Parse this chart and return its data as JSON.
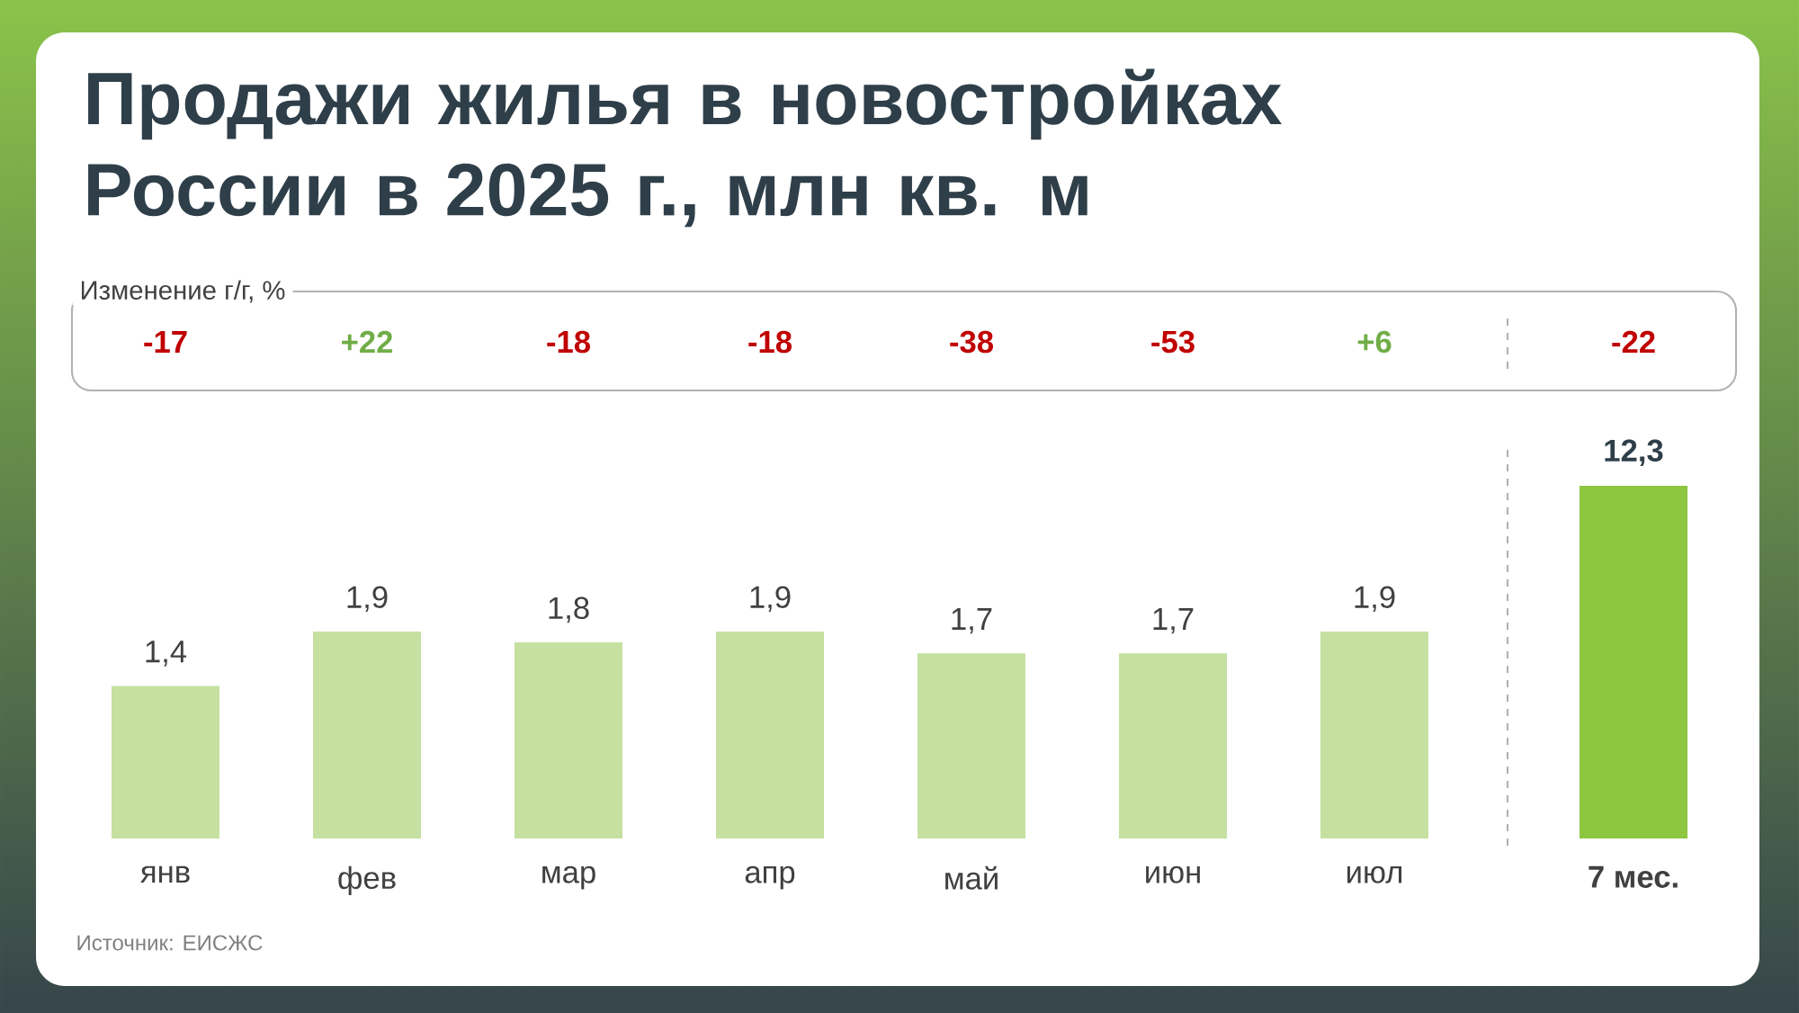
{
  "chart_data": [
    {
      "type": "bar",
      "title": "Продажи жилья в новостройках России в 2025 г., млн кв. м",
      "categories": [
        "янв",
        "фев",
        "мар",
        "апр",
        "май",
        "июн",
        "июл"
      ],
      "values": [
        1.4,
        1.9,
        1.8,
        1.9,
        1.7,
        1.7,
        1.9
      ],
      "value_labels": [
        "1,4",
        "1,9",
        "1,8",
        "1,9",
        "1,7",
        "1,7",
        "1,9"
      ],
      "color": "#c5e0a0",
      "annotations": [
        "Изменение г/г, %",
        "-17",
        "+22",
        "-18",
        "-18",
        "-38",
        "-53",
        "+6",
        "Источник: ЕИСЖС"
      ]
    },
    {
      "type": "bar",
      "categories": [
        "7 мес."
      ],
      "values": [
        12.3
      ],
      "value_labels": [
        "12,3"
      ],
      "color": "#8dc63f",
      "annotations": [
        "-22"
      ]
    }
  ]
}
